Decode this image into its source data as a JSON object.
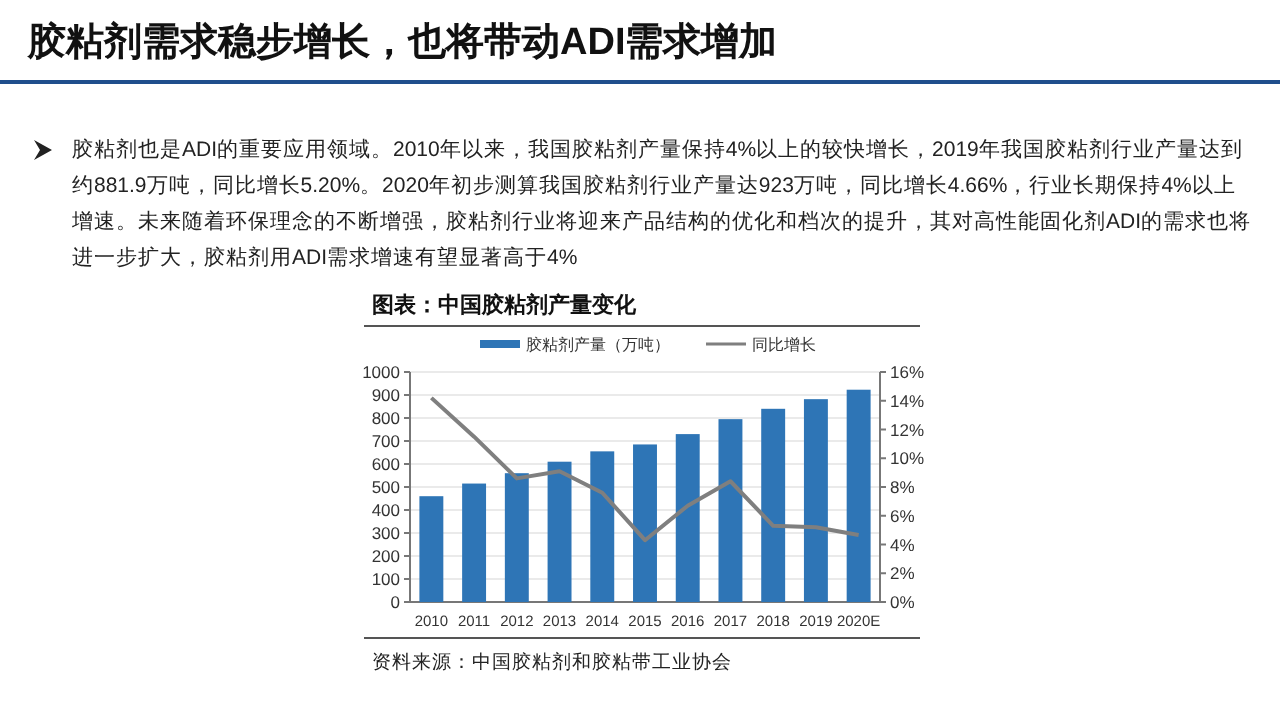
{
  "chart_data": {
    "type": "bar",
    "title": "胶粘剂需求稳步增长，也将带动ADI需求增加",
    "subtitle": "图表：中国胶粘剂产量变化",
    "annotations": [
      "胶粘剂也是ADI的重要应用领域。2010年以来，我国胶粘剂产量保持4%以上的较快增长，2019年我国胶粘剂行业产量达到约881.9万吨，同比增长5.20%。2020年初步测算我国胶粘剂行业产量达923万吨，同比增长4.66%，行业长期保持4%以上增速。未来随着环保理念的不断增强，胶粘剂行业将迎来产品结构的优化和档次的提升，其对高性能固化剂ADI的需求也将进一步扩大，胶粘剂用ADI需求增速有望显著高于4%",
      "资料来源：中国胶粘剂和胶粘带工业协会"
    ],
    "categories": [
      "2010",
      "2011",
      "2012",
      "2013",
      "2014",
      "2015",
      "2016",
      "2017",
      "2018",
      "2019",
      "2020E"
    ],
    "series": [
      {
        "name": "胶粘剂产量（万吨）",
        "color": "#2e75b6",
        "values": [
          460,
          515,
          560,
          610,
          655,
          685,
          730,
          795,
          840,
          881.9,
          923
        ]
      },
      {
        "name": "同比增长",
        "type": "line",
        "axis": "y2",
        "color": "#7f7f7f",
        "values": [
          14.2,
          11.5,
          8.6,
          9.1,
          7.6,
          4.3,
          6.7,
          8.4,
          5.3,
          5.2,
          4.66
        ]
      }
    ],
    "ylim": [
      0,
      1000
    ],
    "yticks": [
      0,
      100,
      200,
      300,
      400,
      500,
      600,
      700,
      800,
      900,
      1000
    ],
    "y2lim": [
      0,
      16
    ],
    "y2ticks": [
      {
        "value": 0,
        "label": "0%"
      },
      {
        "value": 2,
        "label": "2%"
      },
      {
        "value": 4,
        "label": "4%"
      },
      {
        "value": 6,
        "label": "6%"
      },
      {
        "value": 8,
        "label": "8%"
      },
      {
        "value": 10,
        "label": "10%"
      },
      {
        "value": 12,
        "label": "12%"
      },
      {
        "value": 14,
        "label": "14%"
      },
      {
        "value": 16,
        "label": "16%"
      }
    ],
    "grid": "y",
    "legend": "top",
    "marker": "none"
  }
}
